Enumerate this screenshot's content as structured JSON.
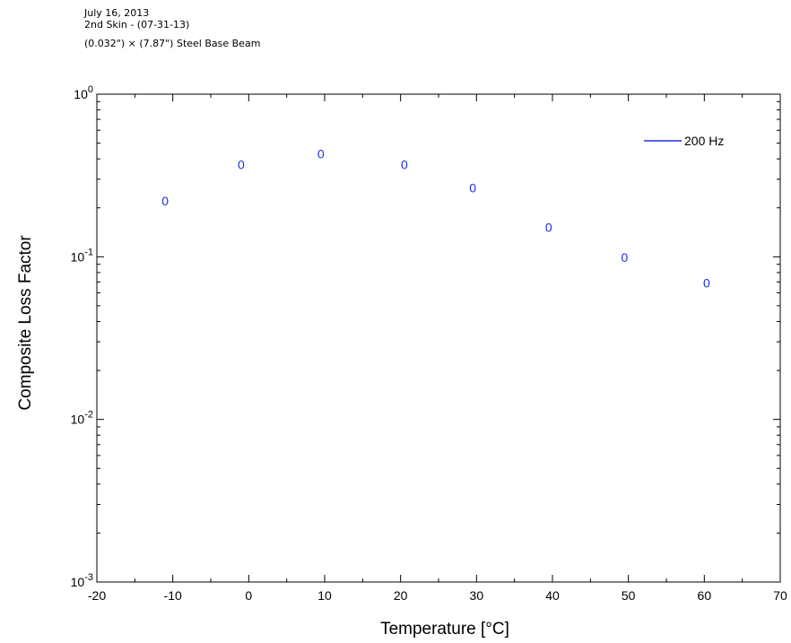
{
  "header": {
    "date": "July 16, 2013",
    "subtitle": "2nd Skin - (07-31-13)",
    "specimen": "(0.032\") × (7.87\") Steel Base Beam"
  },
  "colors": {
    "series": "#1f2fd8",
    "axis": "#000000"
  },
  "chart_data": {
    "type": "scatter",
    "xlabel": "Temperature [°C]",
    "ylabel": "Composite Loss Factor",
    "xlim": [
      -20,
      70
    ],
    "ylim": [
      0.001,
      1
    ],
    "yscale": "log",
    "xticks": [
      -20,
      -10,
      0,
      10,
      20,
      30,
      40,
      50,
      60,
      70
    ],
    "yticks": [
      {
        "value": 1,
        "base": "10",
        "exp": "0"
      },
      {
        "value": 0.1,
        "base": "10",
        "exp": "-1"
      },
      {
        "value": 0.01,
        "base": "10",
        "exp": "-2"
      },
      {
        "value": 0.001,
        "base": "10",
        "exp": "-3"
      }
    ],
    "grid": false,
    "legend_position": "top-right",
    "marker_symbol": "0",
    "series": [
      {
        "name": "200 Hz",
        "x": [
          -11,
          -1,
          9.5,
          20.5,
          29.5,
          39.5,
          49.5,
          60.3
        ],
        "y": [
          0.22,
          0.37,
          0.43,
          0.37,
          0.265,
          0.152,
          0.099,
          0.069
        ]
      }
    ]
  }
}
